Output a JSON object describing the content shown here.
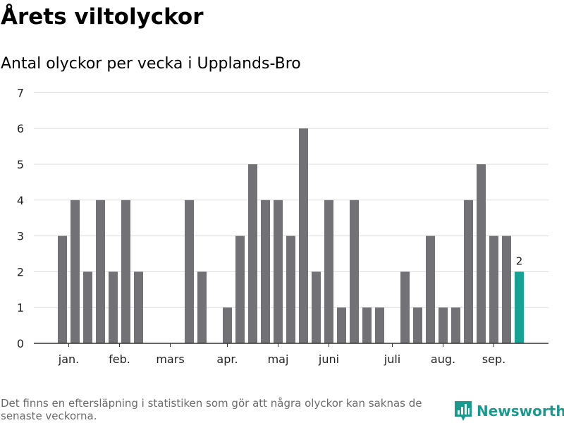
{
  "title": "Årets viltolyckor",
  "subtitle": "Antal olyckor per vecka i Upplands-Bro",
  "footnote": "Det finns en eftersläpning i statistiken som gör att några olyckor kan saknas de senaste veckorna.",
  "brand": {
    "name": "Newsworthy",
    "icon": "newsworthy-logo-icon",
    "color": "#1a9a8e"
  },
  "colors": {
    "bar": "#727175",
    "highlight": "#16a394",
    "grid": "#dddddd",
    "axis": "#333333"
  },
  "chart_data": {
    "type": "bar",
    "title": "Årets viltolyckor",
    "subtitle": "Antal olyckor per vecka i Upplands-Bro",
    "xlabel": "",
    "ylabel": "",
    "ylim": [
      0,
      7
    ],
    "yticks": [
      0,
      1,
      2,
      3,
      4,
      5,
      6,
      7
    ],
    "grid": true,
    "values": [
      3,
      4,
      2,
      4,
      2,
      4,
      2,
      0,
      0,
      0,
      4,
      2,
      0,
      1,
      3,
      5,
      4,
      4,
      3,
      6,
      2,
      4,
      1,
      4,
      1,
      1,
      0,
      2,
      1,
      3,
      1,
      1,
      4,
      5,
      3,
      3,
      2
    ],
    "highlight_last": true,
    "last_value_label": "2",
    "month_labels": [
      {
        "label": "jan.",
        "at_bar": 0.5
      },
      {
        "label": "feb.",
        "at_bar": 4.5
      },
      {
        "label": "mars",
        "at_bar": 8.5
      },
      {
        "label": "apr.",
        "at_bar": 13
      },
      {
        "label": "maj",
        "at_bar": 17
      },
      {
        "label": "juni",
        "at_bar": 21
      },
      {
        "label": "juli",
        "at_bar": 26
      },
      {
        "label": "aug.",
        "at_bar": 30
      },
      {
        "label": "sep.",
        "at_bar": 34
      }
    ]
  }
}
